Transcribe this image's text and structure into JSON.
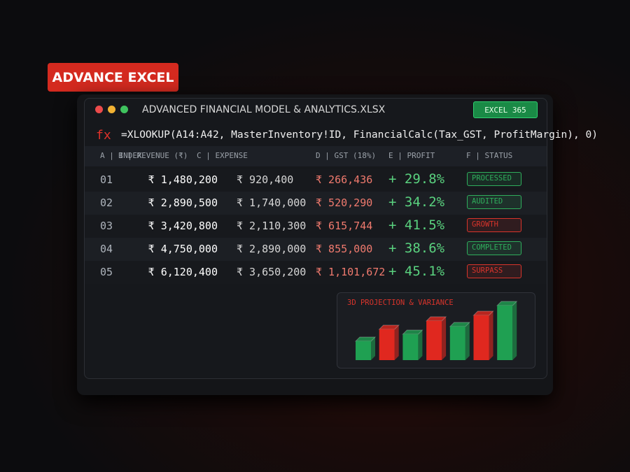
{
  "badge": "ADVANCE EXCEL",
  "window": {
    "title": "ADVANCED FINANCIAL MODEL & ANALYTICS.XLSX",
    "tag": "EXCEL 365"
  },
  "formula": {
    "icon": "fx",
    "text": "=XLOOKUP(A14:A42, MasterInventory!ID, FinancialCalc(Tax_GST, ProfitMargin), 0)"
  },
  "table": {
    "headers": [
      "A | INDEX",
      "B | REVENUE (₹)",
      "C | EXPENSE",
      "D | GST (18%)",
      "E | PROFIT",
      "F | STATUS"
    ],
    "rows": [
      [
        "01",
        "₹ 1,480,200",
        "₹ 920,400",
        "₹ 266,436",
        "+ 29.8%",
        "PROCESSED"
      ],
      [
        "02",
        "₹ 2,890,500",
        "₹ 1,740,000",
        "₹ 520,290",
        "+ 34.2%",
        "AUDITED"
      ],
      [
        "03",
        "₹ 3,420,800",
        "₹ 2,110,300",
        "₹ 615,744",
        "+ 41.5%",
        "GROWTH"
      ],
      [
        "04",
        "₹ 4,750,000",
        "₹ 2,890,000",
        "₹ 855,000",
        "+ 38.6%",
        "COMPLETED"
      ],
      [
        "05",
        "₹ 6,120,400",
        "₹ 3,650,200",
        "₹ 1,101,672",
        "+ 45.1%",
        "SURPASS"
      ]
    ],
    "status_colors": [
      "#2fae5c",
      "#2fae5c",
      "#d9342b",
      "#2fae5c",
      "#d9342b"
    ]
  },
  "projection": {
    "title": "3D PROJECTION & VARIANCE",
    "values": [
      27,
      44,
      37,
      56,
      48,
      64,
      78
    ],
    "colors": [
      "#1fa052",
      "#e0281f",
      "#1fa052",
      "#e0281f",
      "#1fa052",
      "#e0281f",
      "#1fa052"
    ]
  }
}
